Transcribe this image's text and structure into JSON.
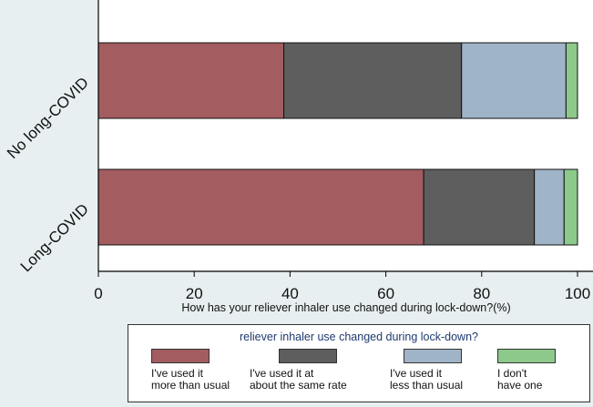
{
  "chart_data": {
    "type": "bar",
    "orientation": "horizontal",
    "stacked": true,
    "categories": [
      "No long-COVID",
      "Long-COVID"
    ],
    "series": [
      {
        "name": "I've used it more than usual",
        "values": [
          38.7,
          67.9
        ],
        "color": "#a35c5f"
      },
      {
        "name": "I've used it at about the same rate",
        "values": [
          37.1,
          23.1
        ],
        "color": "#5e5e5e"
      },
      {
        "name": "I've used it less than usual",
        "values": [
          21.8,
          6.2
        ],
        "color": "#a0b4c8"
      },
      {
        "name": "I don't have one",
        "values": [
          2.4,
          2.8
        ],
        "color": "#8cc98a"
      }
    ],
    "xlabel": "How has your reliever inhaler use changed during lock-down?(%)",
    "xlim": [
      0,
      100
    ],
    "xticks": [
      0,
      20,
      40,
      60,
      80,
      100
    ],
    "grid": false,
    "legend": {
      "title": "reliever inhaler use changed during lock-down?",
      "position": "bottom",
      "labels": [
        "I've used it\nmore than usual",
        "I've used it at\nabout the same rate",
        "I've used it\nless than usual",
        "I don't\nhave one"
      ]
    }
  },
  "colors": {
    "page_background": "#e8eff1",
    "plot_background": "#ffffff",
    "axis": "#000000"
  }
}
